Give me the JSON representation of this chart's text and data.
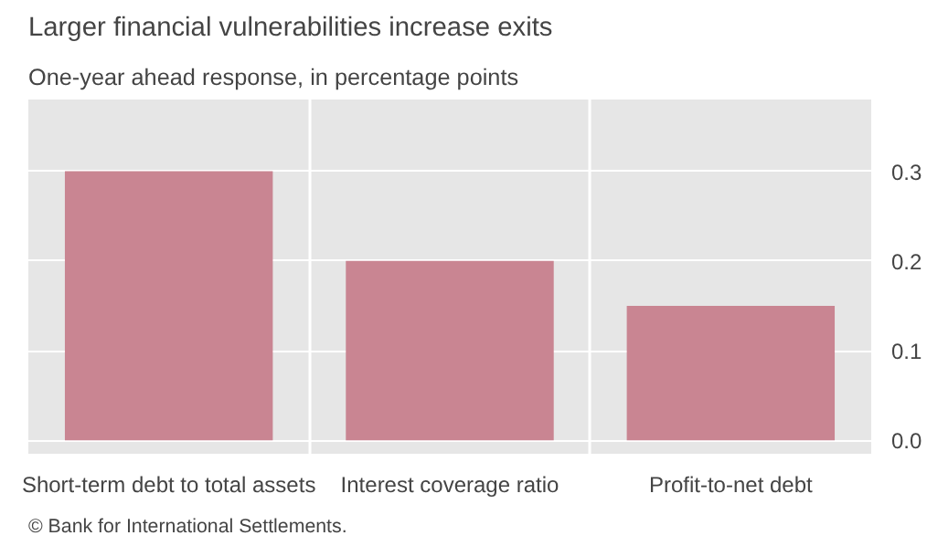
{
  "chart_data": {
    "type": "bar",
    "title": "Larger financial vulnerabilities increase exits",
    "subtitle": "One-year ahead response, in percentage points",
    "categories": [
      "Short-term debt to total assets",
      "Interest coverage ratio",
      "Profit-to-net debt"
    ],
    "values": [
      0.3,
      0.2,
      0.15
    ],
    "color": "#c98592",
    "ylim": [
      -0.015,
      0.38
    ],
    "yticks": [
      {
        "value": 0,
        "label": "0.0"
      },
      0.1,
      0.2,
      0.3
    ],
    "grid": true,
    "annotations": [
      "© Bank for International Settlements."
    ]
  }
}
